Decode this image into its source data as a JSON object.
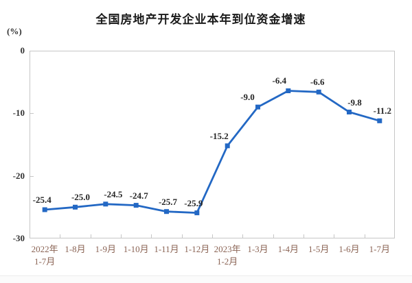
{
  "chart_data": {
    "type": "line",
    "title": "全国房地产开发企业本年到位资金增速",
    "unit_label": "(%)",
    "categories": [
      "2022年\n1-7月",
      "1-8月",
      "1-9月",
      "1-10月",
      "1-11月",
      "1-12月",
      "2023年\n1-2月",
      "1-3月",
      "1-4月",
      "1-5月",
      "1-6月",
      "1-7月"
    ],
    "values": [
      -25.4,
      -25.0,
      -24.5,
      -24.7,
      -25.7,
      -25.9,
      -15.2,
      -9.0,
      -6.4,
      -6.6,
      -9.8,
      -11.2
    ],
    "data_labels": [
      "-25.4",
      "-25.0",
      "-24.5",
      "-24.7",
      "-25.7",
      "-25.9",
      "-15.2",
      "-9.0",
      "-6.4",
      "-6.6",
      "-9.8",
      "-11.2"
    ],
    "y_ticks": [
      0,
      -10,
      -20,
      -30
    ],
    "ylim": [
      -30,
      0
    ],
    "xlabel": "",
    "ylabel": "(%)",
    "grid": false,
    "legend": "none",
    "colors": {
      "line": "#2368C4",
      "marker": "#2368C4",
      "title_text": "#1a1a1a",
      "axis_numbers": "#333333",
      "x_labels": "#8B6455",
      "data_labels": "#262626",
      "plot_border": "#C6C6C6"
    }
  }
}
